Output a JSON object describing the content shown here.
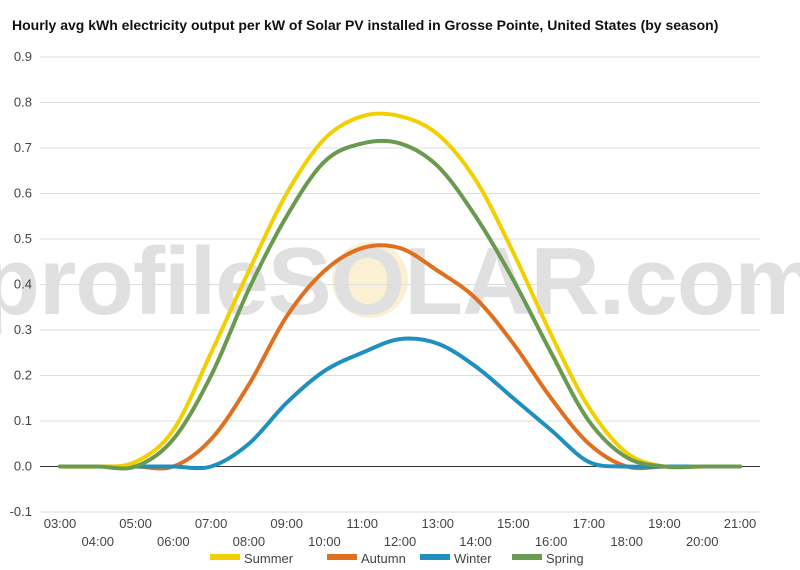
{
  "chart_data": {
    "type": "line",
    "title": "Hourly avg kWh electricity output per kW of Solar PV installed in Grosse Pointe, United States (by season)",
    "xlabel": "",
    "ylabel": "",
    "ylim": [
      -0.1,
      0.9
    ],
    "yticks": [
      "-0.1",
      "0.0",
      "0.1",
      "0.2",
      "0.3",
      "0.4",
      "0.5",
      "0.6",
      "0.7",
      "0.8",
      "0.9"
    ],
    "x_ticks_upper": [
      "03:00",
      "05:00",
      "07:00",
      "09:00",
      "11:00",
      "13:00",
      "15:00",
      "17:00",
      "19:00",
      "21:00"
    ],
    "x_ticks_lower": [
      "04:00",
      "06:00",
      "08:00",
      "10:00",
      "12:00",
      "14:00",
      "16:00",
      "18:00",
      "20:00"
    ],
    "x": [
      "03:00",
      "04:00",
      "05:00",
      "06:00",
      "07:00",
      "08:00",
      "09:00",
      "10:00",
      "11:00",
      "12:00",
      "13:00",
      "14:00",
      "15:00",
      "16:00",
      "17:00",
      "18:00",
      "19:00",
      "20:00",
      "21:00"
    ],
    "grid": true,
    "legend_position": "bottom",
    "watermark": "profileSOLAR.com",
    "series": [
      {
        "name": "Summer",
        "color": "#f2d000",
        "values": [
          0.0,
          0.0,
          0.01,
          0.08,
          0.25,
          0.43,
          0.6,
          0.72,
          0.77,
          0.77,
          0.73,
          0.63,
          0.47,
          0.29,
          0.13,
          0.03,
          0.0,
          0.0,
          0.0
        ]
      },
      {
        "name": "Autumn",
        "color": "#e07020",
        "values": [
          0.0,
          0.0,
          0.0,
          0.0,
          0.06,
          0.18,
          0.33,
          0.43,
          0.48,
          0.48,
          0.43,
          0.37,
          0.27,
          0.15,
          0.05,
          0.0,
          0.0,
          0.0,
          0.0
        ]
      },
      {
        "name": "Winter",
        "color": "#1f8fc0",
        "values": [
          0.0,
          0.0,
          0.0,
          0.0,
          0.0,
          0.05,
          0.14,
          0.21,
          0.25,
          0.28,
          0.27,
          0.22,
          0.15,
          0.08,
          0.01,
          0.0,
          0.0,
          0.0,
          0.0
        ]
      },
      {
        "name": "Spring",
        "color": "#6a9a50",
        "values": [
          0.0,
          0.0,
          0.0,
          0.06,
          0.2,
          0.39,
          0.55,
          0.67,
          0.71,
          0.71,
          0.66,
          0.55,
          0.41,
          0.25,
          0.1,
          0.02,
          0.0,
          0.0,
          0.0
        ]
      }
    ]
  }
}
